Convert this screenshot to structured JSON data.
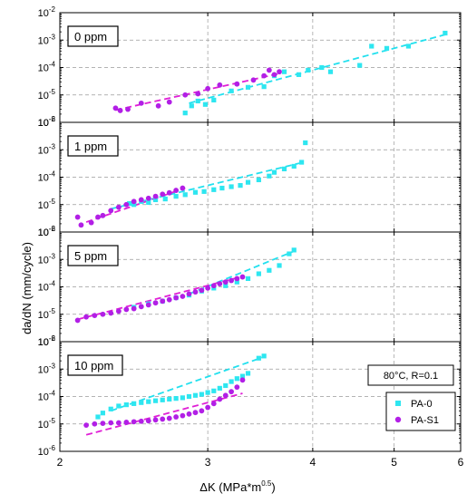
{
  "colors": {
    "pa0": "#2ee6f0",
    "pas1": "#b21fe6",
    "pa0_fit": "#22e0ee",
    "pas1_fit": "#e01fd6",
    "grid": "#9a9a9a",
    "frame": "#000000"
  },
  "chart_data": {
    "type": "scatter",
    "xlabel": "ΔK (MPa*m",
    "xlabel_sup": "0.5",
    "xlabel_close": ")",
    "ylabel": "da/dN (mm/cycle)",
    "x_scale": "log",
    "y_scale": "log",
    "xlim": [
      2,
      6
    ],
    "ylim": [
      1e-06,
      0.01
    ],
    "x_ticks": [
      {
        "value": 2,
        "label": "2"
      },
      {
        "value": 3,
        "label": "3"
      },
      {
        "value": 4,
        "label": "4"
      },
      {
        "value": 5,
        "label": "5"
      },
      {
        "value": 6,
        "label": "6"
      }
    ],
    "y_ticks": [
      {
        "exp": -6,
        "label": "10",
        "sup": "-6"
      },
      {
        "exp": -5,
        "label": "10",
        "sup": "-5"
      },
      {
        "exp": -4,
        "label": "10",
        "sup": "-4"
      },
      {
        "exp": -3,
        "label": "10",
        "sup": "-3"
      },
      {
        "exp": -2,
        "label": "10",
        "sup": "-2"
      }
    ],
    "grid": true,
    "annotation": "80°C, R=0.1",
    "legend": {
      "placement": "bottom-right of last panel",
      "entries": [
        {
          "label": "PA-0",
          "marker": "square",
          "color_key": "pa0"
        },
        {
          "label": "PA-S1",
          "marker": "circle",
          "color_key": "pas1"
        }
      ]
    },
    "panels": [
      {
        "label": "0 ppm",
        "series": [
          {
            "name": "PA-0",
            "points": [
              [
                2.82,
                2.2e-06
              ],
              [
                2.87,
                4e-06
              ],
              [
                2.92,
                6e-06
              ],
              [
                2.98,
                4.5e-06
              ],
              [
                3.05,
                6.5e-06
              ],
              [
                3.2,
                1.4e-05
              ],
              [
                3.35,
                1.9e-05
              ],
              [
                3.5,
                2e-05
              ],
              [
                3.6,
                5e-05
              ],
              [
                3.7,
                7e-05
              ],
              [
                3.85,
                5.5e-05
              ],
              [
                3.95,
                8e-05
              ],
              [
                4.1,
                0.0001
              ],
              [
                4.2,
                7e-05
              ],
              [
                4.55,
                0.00012
              ],
              [
                4.7,
                0.0006
              ],
              [
                4.9,
                0.0005
              ],
              [
                5.2,
                0.0006
              ],
              [
                5.75,
                0.0018
              ]
            ]
          },
          {
            "name": "PA-S1",
            "points": [
              [
                2.33,
                3.3e-06
              ],
              [
                2.36,
                2.7e-06
              ],
              [
                2.41,
                3e-06
              ],
              [
                2.5,
                5e-06
              ],
              [
                2.62,
                4e-06
              ],
              [
                2.7,
                5.5e-06
              ],
              [
                2.82,
                1e-05
              ],
              [
                2.92,
                1.1e-05
              ],
              [
                3.0,
                1.7e-05
              ],
              [
                3.1,
                2.3e-05
              ],
              [
                3.25,
                2.5e-05
              ],
              [
                3.4,
                3.5e-05
              ],
              [
                3.5,
                5e-05
              ],
              [
                3.55,
                8e-05
              ],
              [
                3.6,
                5.5e-05
              ],
              [
                3.65,
                7e-05
              ]
            ]
          }
        ],
        "fits": [
          {
            "name": "PA-0",
            "from": [
              2.85,
              5e-06
            ],
            "to": [
              5.8,
              0.0017
            ]
          },
          {
            "name": "PA-S1",
            "from": [
              2.33,
              2.8e-06
            ],
            "to": [
              3.65,
              6e-05
            ]
          }
        ]
      },
      {
        "label": "1 ppm",
        "series": [
          {
            "name": "PA-0",
            "points": [
              [
                2.42,
                1.1e-05
              ],
              [
                2.45,
                1e-05
              ],
              [
                2.5,
                1.3e-05
              ],
              [
                2.55,
                1.2e-05
              ],
              [
                2.6,
                1.5e-05
              ],
              [
                2.67,
                1.6e-05
              ],
              [
                2.75,
                2e-05
              ],
              [
                2.82,
                2.3e-05
              ],
              [
                2.9,
                2.8e-05
              ],
              [
                2.97,
                3e-05
              ],
              [
                3.05,
                3.5e-05
              ],
              [
                3.12,
                4e-05
              ],
              [
                3.2,
                4.5e-05
              ],
              [
                3.28,
                5e-05
              ],
              [
                3.35,
                6.5e-05
              ],
              [
                3.45,
                8e-05
              ],
              [
                3.55,
                0.00011
              ],
              [
                3.6,
                0.00015
              ],
              [
                3.7,
                0.0002
              ],
              [
                3.8,
                0.00025
              ],
              [
                3.88,
                0.00035
              ],
              [
                3.92,
                0.0018
              ]
            ]
          },
          {
            "name": "PA-S1",
            "points": [
              [
                2.1,
                3.5e-06
              ],
              [
                2.12,
                1.8e-06
              ],
              [
                2.18,
                2.2e-06
              ],
              [
                2.22,
                3.5e-06
              ],
              [
                2.25,
                4e-06
              ],
              [
                2.3,
                6e-06
              ],
              [
                2.35,
                8e-06
              ],
              [
                2.4,
                1e-05
              ],
              [
                2.45,
                1.3e-05
              ],
              [
                2.5,
                1.5e-05
              ],
              [
                2.55,
                1.7e-05
              ],
              [
                2.6,
                2e-05
              ],
              [
                2.65,
                2.4e-05
              ],
              [
                2.7,
                2.7e-05
              ],
              [
                2.75,
                3.3e-05
              ],
              [
                2.8,
                4e-05
              ]
            ]
          }
        ],
        "fits": [
          {
            "name": "PA-0",
            "from": [
              2.3,
              7e-06
            ],
            "to": [
              3.9,
              0.00035
            ]
          },
          {
            "name": "PA-S1",
            "from": [
              2.15,
              2.3e-06
            ],
            "to": [
              2.82,
              4e-05
            ]
          }
        ]
      },
      {
        "label": "5 ppm",
        "series": [
          {
            "name": "PA-0",
            "points": [
              [
                2.45,
                1.8e-05
              ],
              [
                2.55,
                2.4e-05
              ],
              [
                2.65,
                3e-05
              ],
              [
                2.75,
                4e-05
              ],
              [
                2.85,
                5e-05
              ],
              [
                2.95,
                7e-05
              ],
              [
                3.05,
                9e-05
              ],
              [
                3.15,
                0.00011
              ],
              [
                3.25,
                0.00015
              ],
              [
                3.35,
                0.0002
              ],
              [
                3.45,
                0.0003
              ],
              [
                3.55,
                0.0004
              ],
              [
                3.65,
                0.0006
              ],
              [
                3.75,
                0.0016
              ],
              [
                3.8,
                0.0022
              ]
            ]
          },
          {
            "name": "PA-S1",
            "points": [
              [
                2.1,
                6e-06
              ],
              [
                2.15,
                8e-06
              ],
              [
                2.2,
                9e-06
              ],
              [
                2.25,
                1e-05
              ],
              [
                2.3,
                1.1e-05
              ],
              [
                2.35,
                1.3e-05
              ],
              [
                2.4,
                1.5e-05
              ],
              [
                2.45,
                1.6e-05
              ],
              [
                2.5,
                1.9e-05
              ],
              [
                2.55,
                2.2e-05
              ],
              [
                2.6,
                2.6e-05
              ],
              [
                2.65,
                3e-05
              ],
              [
                2.7,
                3.4e-05
              ],
              [
                2.75,
                4e-05
              ],
              [
                2.8,
                4.5e-05
              ],
              [
                2.85,
                5.5e-05
              ],
              [
                2.9,
                6.5e-05
              ],
              [
                2.95,
                7.5e-05
              ],
              [
                3.0,
                9e-05
              ],
              [
                3.05,
                0.00011
              ],
              [
                3.1,
                0.00013
              ],
              [
                3.15,
                0.00015
              ],
              [
                3.2,
                0.00017
              ],
              [
                3.25,
                0.0002
              ],
              [
                3.3,
                0.00023
              ]
            ]
          }
        ],
        "fits": [
          {
            "name": "PA-0",
            "from": [
              2.85,
              5.5e-05
            ],
            "to": [
              3.8,
              0.002
            ]
          },
          {
            "name": "PA-S1",
            "from": [
              2.1,
              6.5e-06
            ],
            "to": [
              3.3,
              0.00024
            ]
          }
        ]
      },
      {
        "label": "10 ppm",
        "series": [
          {
            "name": "PA-0",
            "points": [
              [
                2.22,
                1.8e-05
              ],
              [
                2.25,
                2.5e-05
              ],
              [
                2.3,
                3.5e-05
              ],
              [
                2.35,
                4.5e-05
              ],
              [
                2.4,
                5e-05
              ],
              [
                2.45,
                5.5e-05
              ],
              [
                2.5,
                6e-05
              ],
              [
                2.55,
                6.5e-05
              ],
              [
                2.6,
                7e-05
              ],
              [
                2.65,
                7.5e-05
              ],
              [
                2.7,
                8e-05
              ],
              [
                2.75,
                8.5e-05
              ],
              [
                2.8,
                9e-05
              ],
              [
                2.85,
                0.0001
              ],
              [
                2.9,
                0.00011
              ],
              [
                2.95,
                0.00012
              ],
              [
                3.0,
                0.00014
              ],
              [
                3.05,
                0.00016
              ],
              [
                3.1,
                0.0002
              ],
              [
                3.15,
                0.00025
              ],
              [
                3.2,
                0.00035
              ],
              [
                3.25,
                0.00045
              ],
              [
                3.3,
                0.00055
              ],
              [
                3.35,
                0.0007
              ],
              [
                3.45,
                0.0025
              ],
              [
                3.5,
                0.003
              ]
            ]
          },
          {
            "name": "PA-S1",
            "points": [
              [
                2.15,
                9e-06
              ],
              [
                2.2,
                1e-05
              ],
              [
                2.25,
                1.05e-05
              ],
              [
                2.3,
                1.1e-05
              ],
              [
                2.35,
                1.1e-05
              ],
              [
                2.4,
                1.15e-05
              ],
              [
                2.45,
                1.2e-05
              ],
              [
                2.5,
                1.25e-05
              ],
              [
                2.55,
                1.3e-05
              ],
              [
                2.6,
                1.4e-05
              ],
              [
                2.65,
                1.5e-05
              ],
              [
                2.7,
                1.6e-05
              ],
              [
                2.75,
                1.8e-05
              ],
              [
                2.8,
                2e-05
              ],
              [
                2.85,
                2.3e-05
              ],
              [
                2.9,
                2.6e-05
              ],
              [
                2.95,
                3e-05
              ],
              [
                3.0,
                4e-05
              ],
              [
                3.05,
                5.5e-05
              ],
              [
                3.1,
                8e-05
              ],
              [
                3.15,
                0.00011
              ],
              [
                3.2,
                0.00015
              ],
              [
                3.25,
                0.00022
              ],
              [
                3.3,
                0.0004
              ]
            ]
          }
        ],
        "fits": [
          {
            "name": "PA-0",
            "from": [
              2.3,
              3e-05
            ],
            "to": [
              3.5,
              0.0028
            ]
          },
          {
            "name": "PA-S1",
            "from": [
              2.15,
              4e-06
            ],
            "to": [
              3.3,
              0.00013
            ]
          }
        ]
      }
    ]
  }
}
